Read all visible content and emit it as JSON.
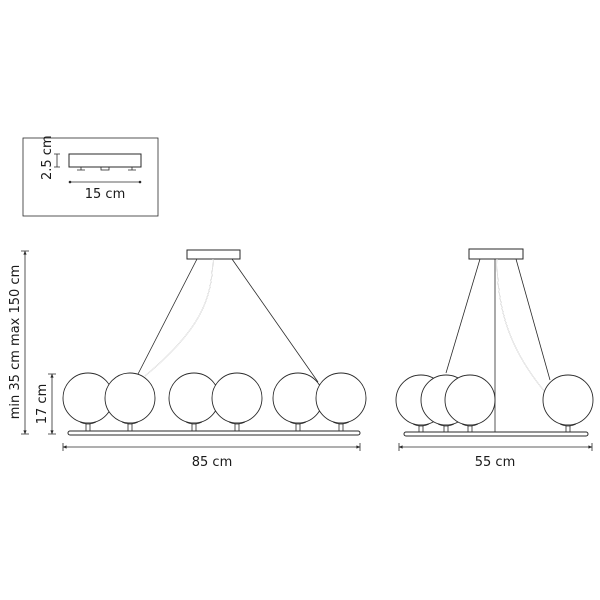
{
  "inset": {
    "height_label": "2.5 cm",
    "width_label": "15 cm"
  },
  "front_view": {
    "height_range_label": "min 35 cm max 150 cm",
    "shade_height_label": "17 cm",
    "width_label": "85 cm",
    "shade_count": 6
  },
  "side_view": {
    "width_label": "55 cm",
    "shade_count": 4
  },
  "colors": {
    "line": "#2a2a2a",
    "background": "#ffffff"
  }
}
